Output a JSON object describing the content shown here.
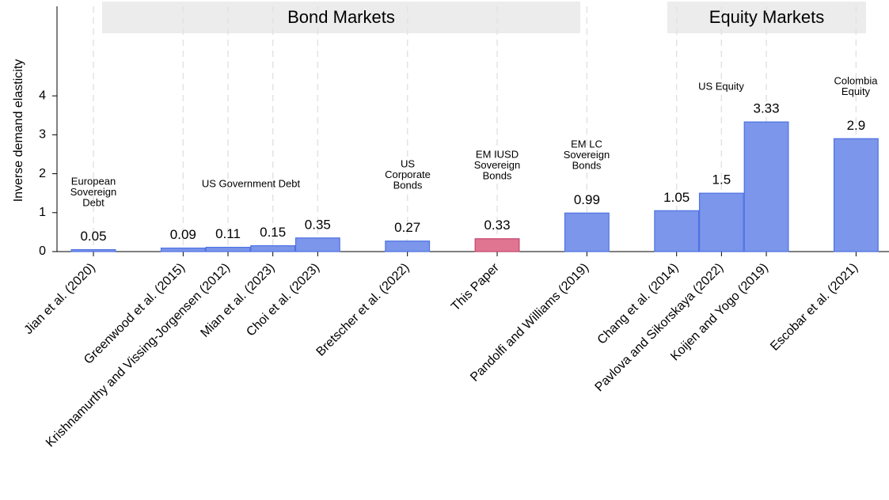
{
  "chart_data": {
    "type": "bar",
    "y_label": "Inverse demand elasticity",
    "categories": [
      "Jian et al. (2020)",
      null,
      "Greenwood et al. (2015)",
      "Krishnamurthy and Vissing-Jorgensen (2012)",
      "Mian et al. (2023)",
      "Choi et al. (2023)",
      null,
      "Bretscher et al. (2022)",
      null,
      "This Paper",
      null,
      "Pandolfi and Williams (2019)",
      null,
      "Chang et al. (2014)",
      "Pavlova and Sikorskaya (2022)",
      "Koijen and Yogo (2019)",
      null,
      "Escobar et al. (2021)"
    ],
    "values": [
      0.05,
      null,
      0.09,
      0.11,
      0.15,
      0.35,
      null,
      0.27,
      null,
      0.33,
      null,
      0.99,
      null,
      1.05,
      1.5,
      3.33,
      null,
      2.9
    ],
    "colors": [
      "#7b96ea",
      null,
      "#7b96ea",
      "#7b96ea",
      "#7b96ea",
      "#7b96ea",
      null,
      "#7b96ea",
      null,
      "#e07592",
      null,
      "#7b96ea",
      null,
      "#7b96ea",
      "#7b96ea",
      "#7b96ea",
      null,
      "#7b96ea"
    ],
    "ylim": [
      0,
      6.3
    ],
    "yticks": [
      0,
      1,
      2,
      3,
      4
    ],
    "groups": [
      {
        "label": "Bond Markets"
      },
      {
        "label": "Equity Markets"
      }
    ],
    "annotations": [
      {
        "lines": [
          "European",
          "Sovereign",
          "Debt"
        ]
      },
      {
        "lines": [
          "US Government Debt"
        ]
      },
      {
        "lines": [
          "US",
          "Corporate",
          "Bonds"
        ]
      },
      {
        "lines": [
          "EM IUSD",
          "Sovereign",
          "Bonds"
        ]
      },
      {
        "lines": [
          "EM LC",
          "Sovereign",
          "Bonds"
        ]
      },
      {
        "lines": [
          "US Equity"
        ]
      },
      {
        "lines": [
          "Colombia",
          "Equity"
        ]
      }
    ]
  }
}
